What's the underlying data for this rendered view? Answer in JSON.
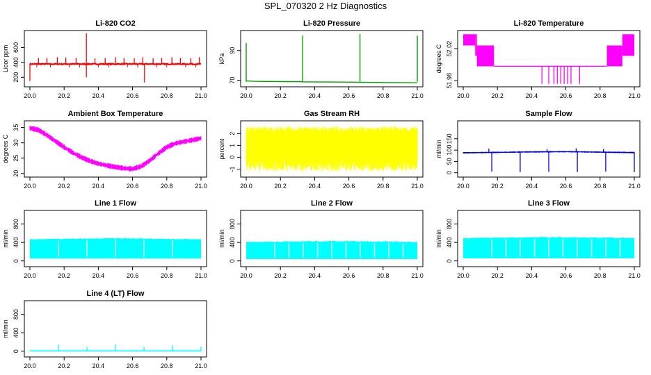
{
  "figure": {
    "title": "SPL_070320  2 Hz Diagnostics"
  },
  "chart_data": [
    {
      "type": "line",
      "title": "Li-820 CO2",
      "xlabel": "",
      "ylabel": "Licor ppm",
      "color": "#ff0000",
      "xlim": [
        20.0,
        21.0
      ],
      "ylim": [
        100,
        800
      ],
      "xticks": [
        "20.0",
        "20.2",
        "20.4",
        "20.6",
        "20.8",
        "21.0"
      ],
      "yticks": [
        "200",
        "400",
        "600"
      ],
      "ytick_values": [
        200,
        400,
        600
      ],
      "baseline": 378,
      "noise": 6,
      "spikes": [
        {
          "x": 20.05,
          "y": 460
        },
        {
          "x": 20.1,
          "y": 460
        },
        {
          "x": 20.16,
          "y": 470
        },
        {
          "x": 20.21,
          "y": 465
        },
        {
          "x": 20.27,
          "y": 460
        },
        {
          "x": 20.33,
          "y": 790
        },
        {
          "x": 20.33,
          "y": 200
        },
        {
          "x": 20.38,
          "y": 455
        },
        {
          "x": 20.44,
          "y": 460
        },
        {
          "x": 20.5,
          "y": 470
        },
        {
          "x": 20.55,
          "y": 460
        },
        {
          "x": 20.61,
          "y": 455
        },
        {
          "x": 20.66,
          "y": 470
        },
        {
          "x": 20.67,
          "y": 130
        },
        {
          "x": 20.72,
          "y": 455
        },
        {
          "x": 20.77,
          "y": 460
        },
        {
          "x": 20.83,
          "y": 470
        },
        {
          "x": 20.88,
          "y": 460
        },
        {
          "x": 20.94,
          "y": 455
        },
        {
          "x": 20.99,
          "y": 470
        },
        {
          "x": 20.0,
          "y": 150
        }
      ],
      "dips": [
        20.04,
        20.12,
        20.23,
        20.29,
        20.4,
        20.46,
        20.57,
        20.63,
        20.74,
        20.8,
        20.91,
        20.97
      ]
    },
    {
      "type": "line",
      "title": "Li-820 Pressure",
      "xlabel": "",
      "ylabel": "kPa",
      "color": "#00a000",
      "xlim": [
        20.0,
        21.0
      ],
      "ylim": [
        67,
        102
      ],
      "xticks": [
        "20.0",
        "20.2",
        "20.4",
        "20.6",
        "20.8",
        "21.0"
      ],
      "yticks": [
        "70",
        "90"
      ],
      "ytick_values": [
        70,
        90
      ],
      "segments": [
        {
          "x": [
            20.0,
            20.05,
            20.1,
            20.2,
            20.33
          ],
          "y": [
            69.5,
            69.3,
            69.2,
            69.1,
            69.0
          ]
        },
        {
          "x": [
            20.33,
            20.5,
            20.66
          ],
          "y": [
            68.9,
            68.8,
            68.7
          ]
        },
        {
          "x": [
            20.66,
            20.8,
            21.0
          ],
          "y": [
            68.7,
            68.5,
            68.3
          ]
        }
      ],
      "spikes": [
        {
          "x": 20.0,
          "y": 95
        },
        {
          "x": 20.33,
          "y": 100
        },
        {
          "x": 20.665,
          "y": 101
        },
        {
          "x": 21.0,
          "y": 100
        }
      ]
    },
    {
      "type": "line",
      "title": "Li-820 Temperature",
      "xlabel": "",
      "ylabel": "degrees C",
      "color": "#ff00ff",
      "xlim": [
        20.0,
        21.0
      ],
      "ylim": [
        51.975,
        52.04
      ],
      "xticks": [
        "20.0",
        "20.2",
        "20.4",
        "20.6",
        "20.8",
        "21.0"
      ],
      "yticks": [
        "51.98",
        "52.02"
      ],
      "ytick_values": [
        51.98,
        52.02
      ],
      "levels": [
        52.038,
        52.024,
        52.011,
        51.998
      ],
      "blocks": [
        {
          "x0": 20.0,
          "x1": 20.07,
          "lo": 52.024,
          "hi": 52.038
        },
        {
          "x0": 20.07,
          "x1": 20.08,
          "lo": 52.011,
          "hi": 52.038
        },
        {
          "x0": 20.08,
          "x1": 20.18,
          "lo": 51.998,
          "hi": 52.024
        },
        {
          "x0": 20.84,
          "x1": 20.93,
          "lo": 51.998,
          "hi": 52.024
        },
        {
          "x0": 20.93,
          "x1": 21.0,
          "lo": 52.011,
          "hi": 52.038
        }
      ],
      "flat": {
        "x0": 20.18,
        "x1": 20.84,
        "y": 51.998
      },
      "drops": [
        20.46,
        20.5,
        20.53,
        20.55,
        20.57,
        20.59,
        20.61,
        20.63,
        20.68
      ],
      "drop_level": 51.976
    },
    {
      "type": "line",
      "title": "Ambient Box Temperature",
      "xlabel": "",
      "ylabel": "degrees C",
      "color": "#ff00ff",
      "xlim": [
        20.0,
        21.0
      ],
      "ylim": [
        19.5,
        36.5
      ],
      "xticks": [
        "20.0",
        "20.2",
        "20.4",
        "20.6",
        "20.8",
        "21.0"
      ],
      "yticks": [
        "20",
        "25",
        "30",
        "35"
      ],
      "ytick_values": [
        20,
        25,
        30,
        35
      ],
      "x": [
        20.0,
        20.05,
        20.1,
        20.15,
        20.2,
        20.25,
        20.3,
        20.35,
        20.4,
        20.45,
        20.5,
        20.55,
        20.6,
        20.65,
        20.7,
        20.75,
        20.8,
        20.85,
        20.9,
        20.95,
        21.0
      ],
      "y": [
        34.8,
        34.2,
        32.5,
        30.5,
        28.6,
        26.8,
        25.3,
        24.1,
        23.2,
        22.6,
        22.1,
        21.7,
        21.5,
        22.3,
        24.2,
        26.5,
        28.6,
        29.8,
        30.4,
        30.9,
        31.5
      ],
      "band": 1.2
    },
    {
      "type": "line",
      "title": "Gas Stream RH",
      "xlabel": "",
      "ylabel": "percent",
      "color": "#ffff00",
      "xlim": [
        20.0,
        21.0
      ],
      "ylim": [
        -1.5,
        2.9
      ],
      "xticks": [
        "20.0",
        "20.2",
        "20.4",
        "20.6",
        "20.8",
        "21.0"
      ],
      "yticks": [
        "-1",
        "0",
        "1",
        "2"
      ],
      "ytick_values": [
        -1,
        0,
        1,
        2
      ],
      "band_low": -0.3,
      "band_high": 2.1,
      "extreme_low": -1.2,
      "extreme_high": 2.6
    },
    {
      "type": "line",
      "title": "Sample Flow",
      "xlabel": "",
      "ylabel": "ml/min",
      "color": "#0000dd",
      "xlim": [
        20.0,
        21.0
      ],
      "ylim": [
        -10,
        220
      ],
      "xticks": [
        "20.0",
        "20.2",
        "20.4",
        "20.6",
        "20.8",
        "21.0"
      ],
      "yticks": [
        "0",
        "50",
        "100",
        "150"
      ],
      "ytick_values": [
        0,
        50,
        100,
        150
      ],
      "x": [
        20.0,
        20.2,
        20.4,
        20.6,
        20.8,
        21.0
      ],
      "y": [
        88,
        90,
        92,
        93,
        91,
        89
      ],
      "band": 4,
      "drops": [
        {
          "x": 20.167,
          "y": 5
        },
        {
          "x": 20.333,
          "y": 3
        },
        {
          "x": 20.5,
          "y": 4
        },
        {
          "x": 20.667,
          "y": 3
        },
        {
          "x": 20.833,
          "y": 5
        },
        {
          "x": 21.0,
          "y": 2
        }
      ],
      "peaks": [
        {
          "x": 20.15,
          "y": 106
        },
        {
          "x": 20.49,
          "y": 104
        },
        {
          "x": 20.66,
          "y": 108
        },
        {
          "x": 20.82,
          "y": 104
        }
      ]
    },
    {
      "type": "area",
      "title": "Line 1 Flow",
      "xlabel": "",
      "ylabel": "ml/min",
      "color": "#00ffff",
      "xlim": [
        20.0,
        21.0
      ],
      "ylim": [
        -80,
        1050
      ],
      "xticks": [
        "20.0",
        "20.2",
        "20.4",
        "20.6",
        "20.8",
        "21.0"
      ],
      "yticks": [
        "0",
        "400",
        "800"
      ],
      "ytick_values": [
        0,
        400,
        800
      ],
      "band_low": 50,
      "band_high": [
        470,
        480,
        490,
        480,
        470
      ],
      "gaps": [
        20.167,
        20.333,
        20.5,
        20.667,
        20.833
      ]
    },
    {
      "type": "area",
      "title": "Line 2 Flow",
      "xlabel": "",
      "ylabel": "ml/min",
      "color": "#00ffff",
      "xlim": [
        20.0,
        21.0
      ],
      "ylim": [
        -80,
        1050
      ],
      "xticks": [
        "20.0",
        "20.2",
        "20.4",
        "20.6",
        "20.8",
        "21.0"
      ],
      "yticks": [
        "0",
        "400",
        "800"
      ],
      "ytick_values": [
        0,
        400,
        800
      ],
      "band_low": 40,
      "band_high": [
        410,
        420,
        430,
        425,
        410
      ],
      "gaps": [
        20.167,
        20.25,
        20.333,
        20.417,
        20.5,
        20.583,
        20.667,
        20.75,
        20.833,
        20.917
      ]
    },
    {
      "type": "area",
      "title": "Line 3 Flow",
      "xlabel": "",
      "ylabel": "ml/min",
      "color": "#00ffff",
      "xlim": [
        20.0,
        21.0
      ],
      "ylim": [
        -80,
        1050
      ],
      "xticks": [
        "20.0",
        "20.2",
        "20.4",
        "20.6",
        "20.8",
        "21.0"
      ],
      "yticks": [
        "0",
        "400",
        "800"
      ],
      "ytick_values": [
        0,
        400,
        800
      ],
      "band_low": 55,
      "band_high": [
        495,
        505,
        515,
        505,
        495
      ],
      "gaps": [
        20.167,
        20.25,
        20.333,
        20.417,
        20.5,
        20.583,
        20.667,
        20.75,
        20.833,
        20.917
      ]
    },
    {
      "type": "line",
      "title": "Line 4 (LT) Flow",
      "xlabel": "",
      "ylabel": "ml/min",
      "color": "#00ffff",
      "xlim": [
        20.0,
        21.0
      ],
      "ylim": [
        -80,
        1050
      ],
      "xticks": [
        "20.0",
        "20.2",
        "20.4",
        "20.6",
        "20.8",
        "21.0"
      ],
      "yticks": [
        "0",
        "400",
        "800"
      ],
      "ytick_values": [
        0,
        400,
        800
      ],
      "baseline": 5,
      "spikes": [
        {
          "x": 20.167,
          "y": 140
        },
        {
          "x": 20.333,
          "y": 90
        },
        {
          "x": 20.5,
          "y": 150
        },
        {
          "x": 20.667,
          "y": 90
        },
        {
          "x": 20.833,
          "y": 130
        },
        {
          "x": 21.0,
          "y": 100
        }
      ]
    }
  ]
}
